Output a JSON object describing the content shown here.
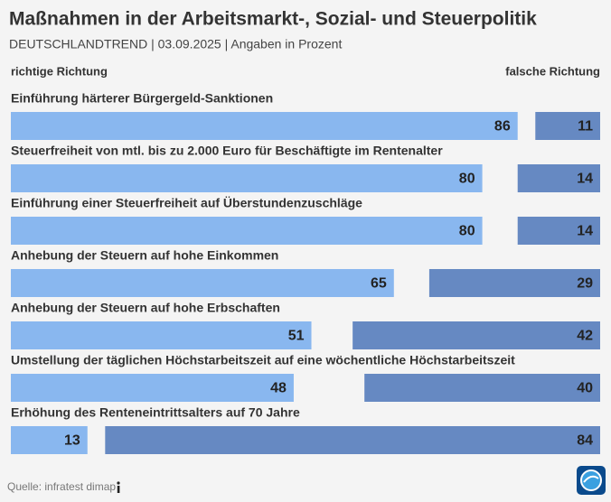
{
  "chart_data": {
    "type": "opposed-bar",
    "title": "Maßnahmen in der Arbeitsmarkt-, Sozial- und Steuerpolitik",
    "subtitle": "DEUTSCHLANDTREND | 03.09.2025 | Angaben in Prozent",
    "categories": [
      "Einführung härterer Bürgergeld-Sanktionen",
      "Steuerfreiheit von mtl. bis zu 2.000 Euro für Beschäftigte im Rentenalter",
      "Einführung einer Steuerfreiheit auf Überstundenzuschläge",
      "Anhebung der Steuern auf hohe Einkommen",
      "Anhebung der Steuern auf hohe Erbschaften",
      "Umstellung der täglichen Höchstarbeitszeit auf eine wöchentliche Höchstarbeitszeit",
      "Erhöhung des Renteneintrittsalters auf 70 Jahre"
    ],
    "series": [
      {
        "name": "richtige Richtung",
        "color": "#89b7ef",
        "values": [
          86,
          80,
          80,
          65,
          51,
          48,
          13
        ]
      },
      {
        "name": "falsche Richtung",
        "color": "#6689c2",
        "values": [
          11,
          14,
          14,
          29,
          42,
          40,
          84
        ]
      }
    ],
    "xlim": [
      0,
      100
    ],
    "source": "Quelle: infratest dimap"
  }
}
